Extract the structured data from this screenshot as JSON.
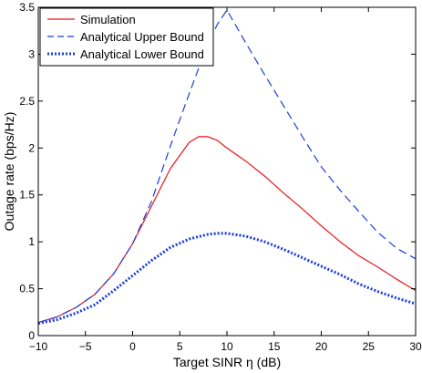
{
  "chart_data": {
    "type": "line",
    "xlabel": "Target SINR η  (dB)",
    "ylabel": "Outage rate (bps/Hz)",
    "xlim": [
      -10,
      30
    ],
    "ylim": [
      0,
      3.5
    ],
    "xticks": [
      -10,
      -5,
      0,
      5,
      10,
      15,
      20,
      25,
      30
    ],
    "yticks": [
      0,
      0.5,
      1,
      1.5,
      2,
      2.5,
      3,
      3.5
    ],
    "grid": false,
    "legend_position": "top-left",
    "series": [
      {
        "name": "Simulation",
        "color": "#e8141b",
        "style": "solid",
        "x": [
          -10,
          -8,
          -6,
          -4,
          -2,
          0,
          2,
          4,
          6,
          7,
          8,
          9,
          10,
          12,
          14,
          16,
          18,
          20,
          22,
          24,
          26,
          28,
          30
        ],
        "y": [
          0.14,
          0.2,
          0.3,
          0.44,
          0.66,
          0.98,
          1.38,
          1.78,
          2.06,
          2.12,
          2.12,
          2.08,
          2.0,
          1.86,
          1.7,
          1.52,
          1.35,
          1.17,
          1.0,
          0.85,
          0.73,
          0.6,
          0.48
        ]
      },
      {
        "name": "Analytical Upper Bound",
        "color": "#1b3fd8",
        "style": "dashed",
        "x": [
          -10,
          -8,
          -6,
          -4,
          -2,
          0,
          2,
          4,
          6,
          8,
          9,
          10,
          12,
          14,
          16,
          18,
          20,
          22,
          24,
          26,
          28,
          30
        ],
        "y": [
          0.14,
          0.2,
          0.3,
          0.44,
          0.66,
          0.98,
          1.43,
          2.02,
          2.58,
          3.12,
          3.32,
          3.47,
          3.12,
          2.78,
          2.45,
          2.12,
          1.8,
          1.55,
          1.32,
          1.1,
          0.93,
          0.82
        ]
      },
      {
        "name": "Analytical Lower Bound",
        "color": "#1b3fd8",
        "style": "dotted",
        "x": [
          -10,
          -8,
          -6,
          -4,
          -2,
          0,
          2,
          4,
          6,
          8,
          9,
          10,
          12,
          14,
          16,
          18,
          20,
          22,
          24,
          26,
          28,
          30
        ],
        "y": [
          0.13,
          0.17,
          0.24,
          0.33,
          0.48,
          0.64,
          0.8,
          0.94,
          1.03,
          1.08,
          1.09,
          1.09,
          1.06,
          1.0,
          0.92,
          0.83,
          0.74,
          0.65,
          0.55,
          0.47,
          0.4,
          0.34
        ]
      }
    ]
  }
}
